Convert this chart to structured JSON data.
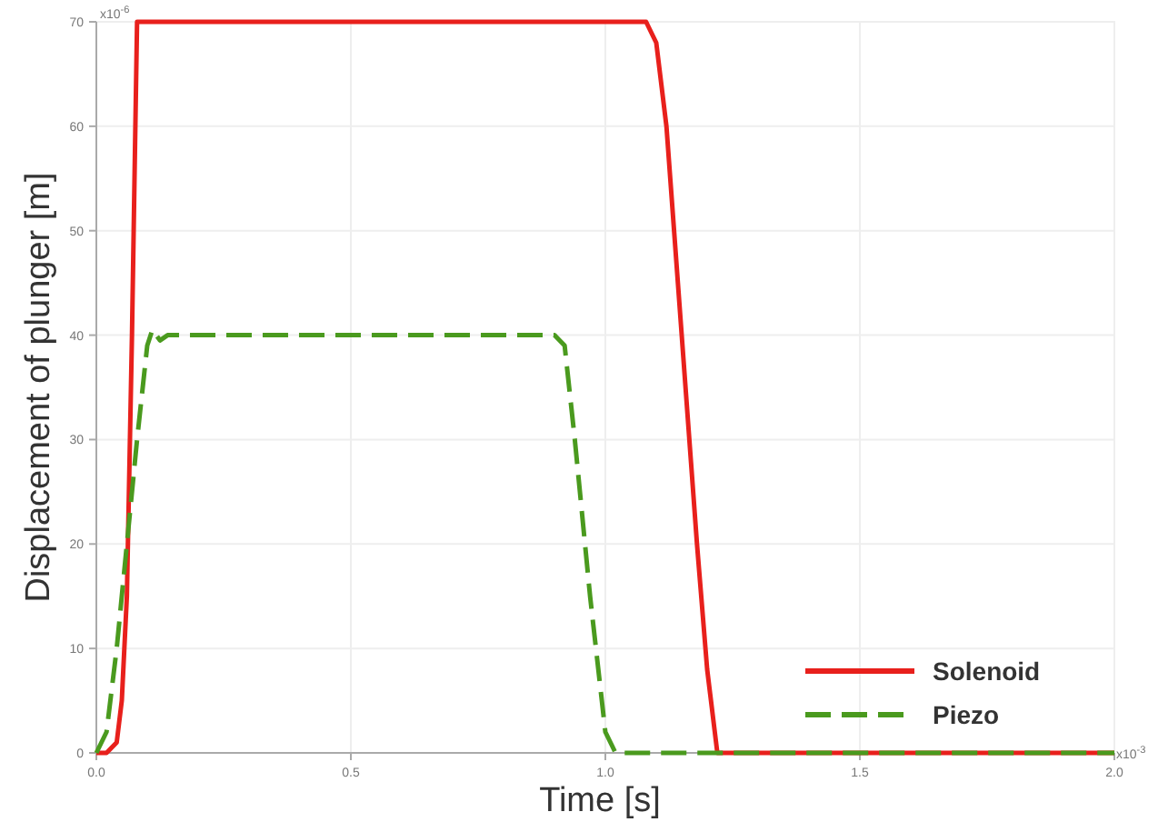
{
  "chart_data": {
    "type": "line",
    "xlabel": "Time [s]",
    "ylabel": "Displacement of plunger [m]",
    "xlim": [
      0,
      2.0
    ],
    "ylim": [
      0,
      70
    ],
    "xticks": [
      {
        "value": 0,
        "label": "0.0"
      },
      {
        "value": 0.5,
        "label": "0.5"
      },
      {
        "value": 1,
        "label": "1.0"
      },
      {
        "value": 1.5,
        "label": "1.5"
      },
      {
        "value": 2,
        "label": "2.0"
      }
    ],
    "yticks": [
      0,
      10,
      20,
      30,
      40,
      50,
      60,
      70
    ],
    "grid": true,
    "legend": "bottom right",
    "annotations": [
      "x10$^{-6}$",
      "x10$^{-3}$"
    ],
    "series": [
      {
        "name": "Solenoid",
        "color": "#e8201c",
        "line_style": "solid",
        "x": [
          0,
          0.02,
          0.04,
          0.05,
          0.06,
          0.07,
          0.08,
          1.08,
          1.1,
          1.12,
          1.15,
          1.18,
          1.2,
          1.22,
          2.0
        ],
        "values": [
          0,
          0,
          1,
          5,
          15,
          40,
          70,
          70,
          68,
          60,
          40,
          20,
          8,
          0,
          0
        ]
      },
      {
        "name": "Piezo",
        "color": "#4a9a1e",
        "line_style": "dashed",
        "x": [
          0,
          0.02,
          0.04,
          0.06,
          0.08,
          0.1,
          0.11,
          0.125,
          0.14,
          0.9,
          0.92,
          0.94,
          0.97,
          1.0,
          1.02,
          2.0
        ],
        "values": [
          0,
          2,
          10,
          20,
          30,
          39,
          40.5,
          39.5,
          40,
          40,
          39,
          30,
          15,
          2,
          0,
          0
        ]
      }
    ]
  }
}
